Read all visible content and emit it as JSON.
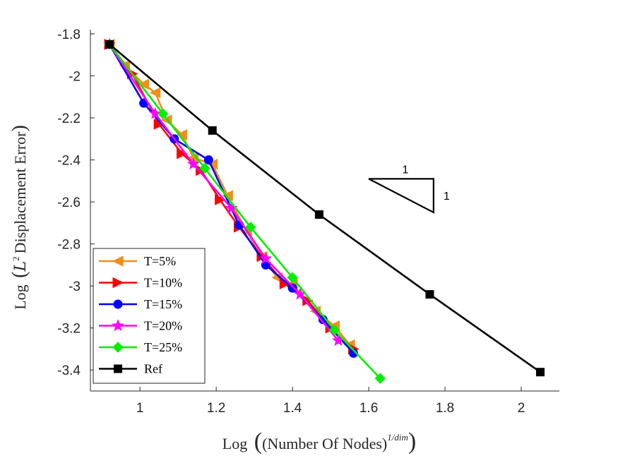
{
  "chart_data": {
    "type": "line",
    "title": "",
    "xlabel": "Log ((Number Of Nodes)^1/dim)",
    "ylabel": "Log (L^2 Displacement Error)",
    "xlabel_parts": {
      "prefix": "Log",
      "body": "(Number Of Nodes)",
      "exponent": "1/dim"
    },
    "ylabel_parts": {
      "prefix": "Log",
      "script": "L",
      "exponent": "2",
      "body": "Displacement Error"
    },
    "xlim": [
      0.87,
      2.1
    ],
    "ylim": [
      -3.5,
      -1.78
    ],
    "xticks": [
      1,
      1.2,
      1.4,
      1.6,
      1.8,
      2
    ],
    "xtick_labels": [
      "1",
      "1.2",
      "1.4",
      "1.6",
      "1.8",
      "2"
    ],
    "yticks": [
      -1.8,
      -2,
      -2.2,
      -2.4,
      -2.6,
      -2.8,
      -3,
      -3.2,
      -3.4
    ],
    "ytick_labels": [
      "-1.8",
      "-2",
      "-2.2",
      "-2.4",
      "-2.6",
      "-2.8",
      "-3",
      "-3.2",
      "-3.4"
    ],
    "grid": false,
    "legend_position": "bottom-left",
    "slope_triangle": {
      "run_label": "1",
      "rise_label": "1",
      "x": [
        1.6,
        1.77
      ],
      "y": [
        -2.49,
        -2.65
      ]
    },
    "series": [
      {
        "name": "T=5%",
        "color": "#f28e1c",
        "marker": "triangle-left",
        "x": [
          0.92,
          0.96,
          1.01,
          1.04,
          1.07,
          1.11,
          1.14,
          1.19,
          1.23,
          1.28,
          1.32,
          1.36,
          1.4,
          1.46,
          1.51,
          1.55
        ],
        "y": [
          -1.85,
          -1.95,
          -2.04,
          -2.08,
          -2.21,
          -2.28,
          -2.39,
          -2.42,
          -2.57,
          -2.74,
          -2.86,
          -2.96,
          -2.99,
          -3.12,
          -3.19,
          -3.28
        ]
      },
      {
        "name": "T=10%",
        "color": "#ff0000",
        "marker": "triangle-right",
        "x": [
          0.92,
          0.98,
          1.05,
          1.11,
          1.16,
          1.21,
          1.26,
          1.32,
          1.38,
          1.44,
          1.5,
          1.56
        ],
        "y": [
          -1.85,
          -1.99,
          -2.23,
          -2.37,
          -2.45,
          -2.59,
          -2.72,
          -2.86,
          -2.99,
          -3.07,
          -3.2,
          -3.3
        ]
      },
      {
        "name": "T=15%",
        "color": "#0000ff",
        "marker": "circle",
        "x": [
          0.92,
          1.01,
          1.09,
          1.18,
          1.26,
          1.33,
          1.4,
          1.48,
          1.56
        ],
        "y": [
          -1.85,
          -2.13,
          -2.3,
          -2.4,
          -2.71,
          -2.9,
          -3.01,
          -3.16,
          -3.32
        ]
      },
      {
        "name": "T=20%",
        "color": "#ff00ff",
        "marker": "star",
        "x": [
          0.92,
          1.04,
          1.14,
          1.24,
          1.33,
          1.42,
          1.52
        ],
        "y": [
          -1.85,
          -2.18,
          -2.42,
          -2.63,
          -2.87,
          -3.04,
          -3.26
        ]
      },
      {
        "name": "T=25%",
        "color": "#00ee00",
        "marker": "diamond",
        "x": [
          0.92,
          1.06,
          1.17,
          1.29,
          1.4,
          1.51,
          1.63
        ],
        "y": [
          -1.85,
          -2.18,
          -2.44,
          -2.72,
          -2.96,
          -3.21,
          -3.44
        ]
      },
      {
        "name": "Ref",
        "color": "#000000",
        "marker": "square",
        "x": [
          0.92,
          1.19,
          1.47,
          1.76,
          2.05
        ],
        "y": [
          -1.85,
          -2.26,
          -2.66,
          -3.04,
          -3.41
        ]
      }
    ]
  }
}
